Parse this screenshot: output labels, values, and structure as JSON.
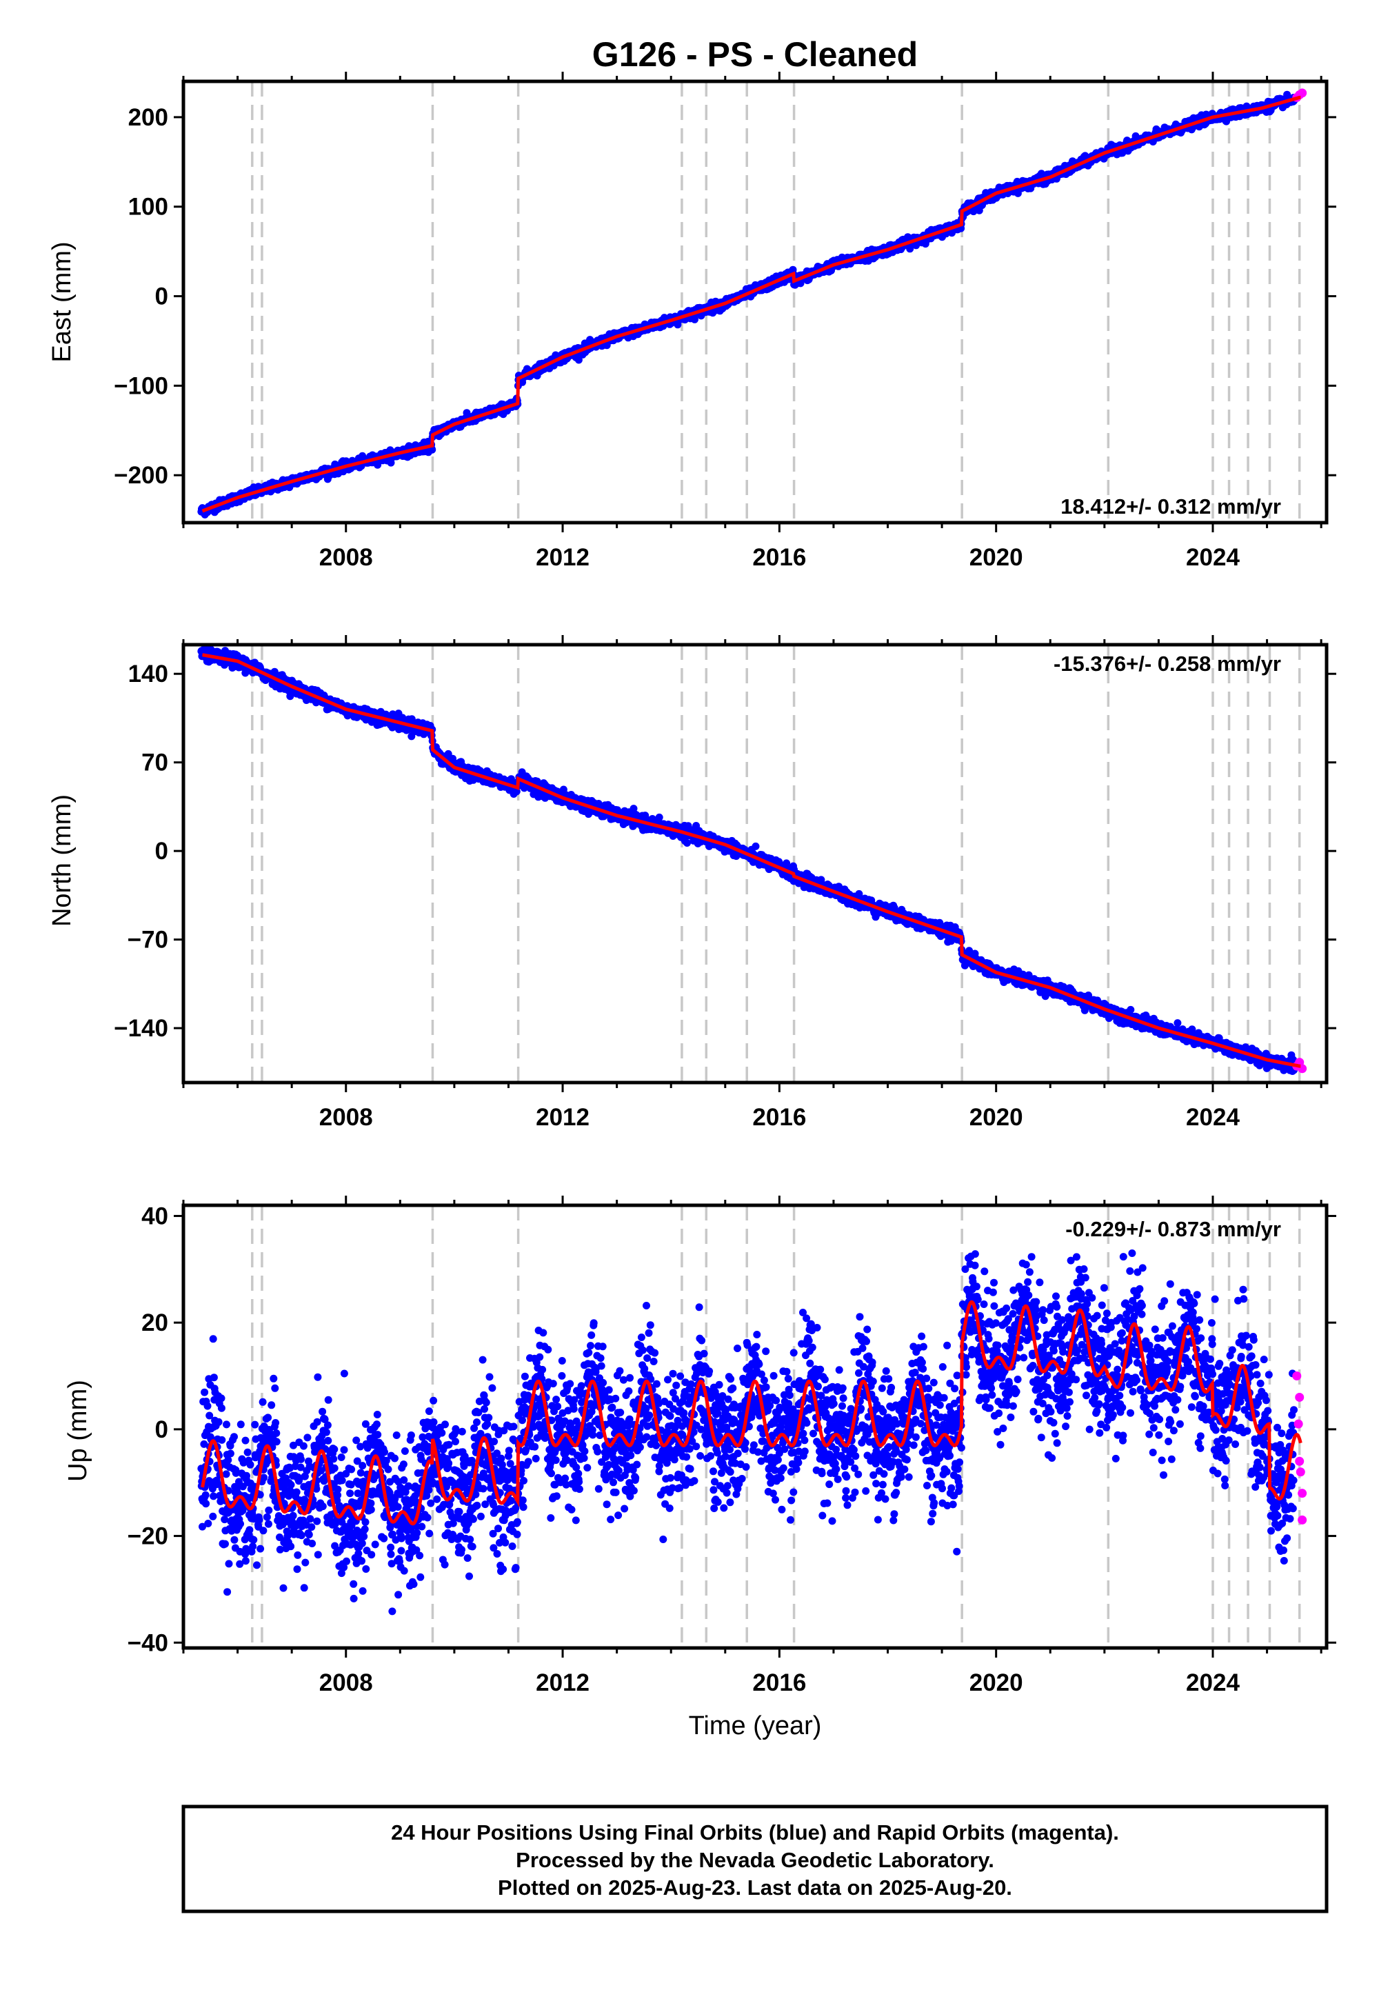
{
  "chart_data": {
    "type": "scatter",
    "title": "G126  - PS - Cleaned",
    "xlabel": "Time (year)",
    "x_ticks": [
      "2008",
      "2012",
      "2016",
      "2020",
      "2024"
    ],
    "x_tick_values": [
      2008,
      2012,
      2016,
      2020,
      2024
    ],
    "xlim": [
      2005.0,
      2026.1
    ],
    "offset_epochs": [
      2006.27,
      2006.45,
      2009.6,
      2011.18,
      2014.2,
      2014.65,
      2015.4,
      2016.27,
      2019.37,
      2022.07,
      2024.0,
      2024.3,
      2024.65,
      2025.05,
      2025.6
    ],
    "legend_colors": {
      "final_orbits": "#0000ff",
      "rapid_orbits": "#ff00ff",
      "model": "#ff0000",
      "offsets": "#c8c8c8"
    },
    "panels": [
      {
        "name": "east",
        "ylabel": "East (mm)",
        "ylim": [
          -253,
          240
        ],
        "y_ticks": [
          "200",
          "100",
          "0",
          "−100",
          "−200"
        ],
        "y_tick_values": [
          200,
          100,
          0,
          -100,
          -200
        ],
        "rate_text": "18.412+/- 0.312 mm/yr",
        "noise_mm": 2.5,
        "seasonal_amp": 0,
        "model": [
          [
            2005.35,
            -240
          ],
          [
            2006.0,
            -225
          ],
          [
            2007.0,
            -207
          ],
          [
            2008.0,
            -190
          ],
          [
            2009.0,
            -175
          ],
          [
            2009.59,
            -167
          ],
          [
            2009.6,
            -155
          ],
          [
            2010.0,
            -143
          ],
          [
            2011.17,
            -120
          ],
          [
            2011.18,
            -92
          ],
          [
            2012.0,
            -68
          ],
          [
            2013.0,
            -45
          ],
          [
            2014.0,
            -27
          ],
          [
            2015.0,
            -8
          ],
          [
            2016.26,
            25
          ],
          [
            2016.27,
            17
          ],
          [
            2017.0,
            35
          ],
          [
            2018.0,
            52
          ],
          [
            2019.36,
            80
          ],
          [
            2019.37,
            95
          ],
          [
            2020.0,
            115
          ],
          [
            2021.0,
            133
          ],
          [
            2022.0,
            160
          ],
          [
            2023.0,
            180
          ],
          [
            2024.0,
            200
          ],
          [
            2024.9,
            210
          ],
          [
            2025.6,
            222
          ]
        ],
        "rapid_points": [
          [
            2025.55,
            222
          ],
          [
            2025.6,
            225
          ],
          [
            2025.65,
            227
          ]
        ]
      },
      {
        "name": "north",
        "ylabel": "North (mm)",
        "ylim": [
          -183,
          163
        ],
        "y_ticks": [
          "140",
          "70",
          "0",
          "−70",
          "−140"
        ],
        "y_tick_values": [
          140,
          70,
          0,
          -70,
          -140
        ],
        "rate_text": "-15.376+/- 0.258 mm/yr",
        "noise_mm": 2.5,
        "seasonal_amp": 0,
        "model": [
          [
            2005.35,
            155
          ],
          [
            2006.0,
            150
          ],
          [
            2007.0,
            130
          ],
          [
            2008.0,
            112
          ],
          [
            2009.59,
            95
          ],
          [
            2009.6,
            80
          ],
          [
            2010.0,
            66
          ],
          [
            2011.17,
            50
          ],
          [
            2011.18,
            57
          ],
          [
            2012.0,
            42
          ],
          [
            2013.0,
            28
          ],
          [
            2014.2,
            15
          ],
          [
            2015.0,
            5
          ],
          [
            2016.26,
            -18
          ],
          [
            2016.27,
            -20
          ],
          [
            2017.0,
            -32
          ],
          [
            2018.0,
            -48
          ],
          [
            2019.36,
            -68
          ],
          [
            2019.37,
            -82
          ],
          [
            2020.0,
            -96
          ],
          [
            2021.0,
            -108
          ],
          [
            2022.0,
            -125
          ],
          [
            2023.0,
            -140
          ],
          [
            2024.0,
            -152
          ],
          [
            2025.0,
            -165
          ],
          [
            2025.6,
            -170
          ]
        ],
        "rapid_points": [
          [
            2025.55,
            -170
          ],
          [
            2025.6,
            -167
          ],
          [
            2025.65,
            -172
          ]
        ]
      },
      {
        "name": "up",
        "ylabel": "Up (mm)",
        "ylim": [
          -41,
          42
        ],
        "y_ticks": [
          "40",
          "20",
          "0",
          "−20",
          "−40"
        ],
        "y_tick_values": [
          40,
          20,
          0,
          -20,
          -40
        ],
        "rate_text": "-0.229+/- 0.873 mm/yr",
        "noise_mm": 6,
        "seasonal_amp": 5,
        "model": [
          [
            2005.35,
            -10
          ],
          [
            2009.59,
            -14
          ],
          [
            2009.6,
            -9
          ],
          [
            2011.17,
            -10
          ],
          [
            2011.18,
            1
          ],
          [
            2014.2,
            1
          ],
          [
            2014.21,
            1
          ],
          [
            2019.36,
            1
          ],
          [
            2019.37,
            16
          ],
          [
            2022.0,
            14
          ],
          [
            2022.07,
            12
          ],
          [
            2023.99,
            11
          ],
          [
            2024.0,
            5
          ],
          [
            2025.04,
            3
          ],
          [
            2025.05,
            -9
          ],
          [
            2025.6,
            -9
          ]
        ],
        "rapid_points": [
          [
            2025.55,
            10
          ],
          [
            2025.6,
            6
          ],
          [
            2025.6,
            -6
          ],
          [
            2025.62,
            -8
          ],
          [
            2025.65,
            -12
          ],
          [
            2025.65,
            -17
          ],
          [
            2025.58,
            1
          ]
        ]
      }
    ],
    "footer_lines": [
      "24 Hour Positions Using Final Orbits (blue) and Rapid Orbits (magenta).",
      "Processed by the Nevada Geodetic Laboratory.",
      "Plotted on 2025-Aug-23. Last data on 2025-Aug-20."
    ]
  }
}
